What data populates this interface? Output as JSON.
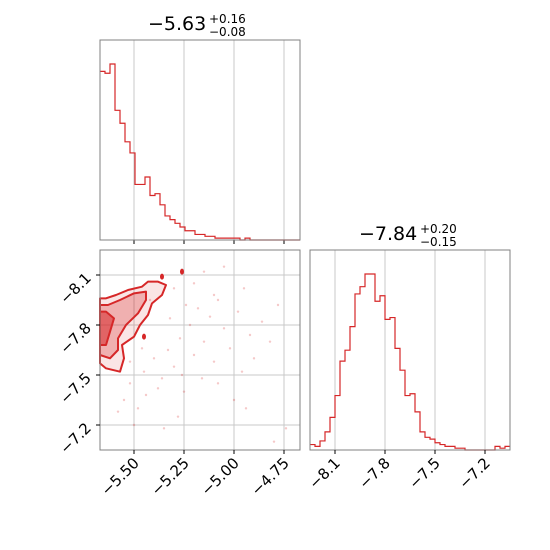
{
  "colors": {
    "series": "#d62728",
    "grid": "#c8c8c8",
    "frame": "#808080"
  },
  "chart_data": [
    {
      "type": "histogram",
      "panel": "marginal-x",
      "title": {
        "value": "−5.63",
        "plus": "+0.16",
        "minus": "−0.08"
      },
      "xlim": [
        -5.67,
        -4.67
      ],
      "grid": true,
      "bins": {
        "start": -5.67,
        "width": 0.025,
        "counts": [
          0.91,
          0.9,
          0.95,
          0.7,
          0.63,
          0.53,
          0.47,
          0.3,
          0.3,
          0.34,
          0.24,
          0.25,
          0.19,
          0.13,
          0.11,
          0.09,
          0.07,
          0.05,
          0.05,
          0.03,
          0.03,
          0.02,
          0.02,
          0.01,
          0.01,
          0.01,
          0.01,
          0.01,
          0.0,
          0.01,
          0.0,
          0.0,
          0.0,
          0.0,
          0.0,
          0.0,
          0.0,
          0.0,
          0.0,
          0.0
        ]
      }
    },
    {
      "type": "histogram",
      "panel": "marginal-y",
      "title": {
        "value": "−7.84",
        "plus": "+0.20",
        "minus": "−0.15"
      },
      "xlim": [
        -8.25,
        -7.05
      ],
      "xticks": [
        "−8.1",
        "−7.8",
        "−7.5",
        "−7.2"
      ],
      "xtick_values": [
        -8.1,
        -7.8,
        -7.5,
        -7.2
      ],
      "grid": true,
      "bins": {
        "start": -8.25,
        "width": 0.03,
        "counts": [
          0.03,
          0.02,
          0.05,
          0.1,
          0.18,
          0.3,
          0.49,
          0.55,
          0.68,
          0.86,
          0.9,
          0.97,
          0.97,
          0.82,
          0.85,
          0.72,
          0.73,
          0.56,
          0.44,
          0.3,
          0.31,
          0.21,
          0.1,
          0.07,
          0.06,
          0.04,
          0.03,
          0.02,
          0.02,
          0.01,
          0.01,
          0.0,
          0.0,
          0.0,
          0.0,
          0.0,
          0.0,
          0.02,
          0.01,
          0.02
        ]
      }
    },
    {
      "type": "scatter",
      "panel": "joint",
      "xlim": [
        -5.67,
        -4.67
      ],
      "ylim": [
        -8.25,
        -7.05
      ],
      "xticks": [
        "−5.50",
        "−5.25",
        "−5.00",
        "−4.75"
      ],
      "xtick_values": [
        -5.5,
        -5.25,
        -5.0,
        -4.75
      ],
      "yticks": [
        "−7.2",
        "−7.5",
        "−7.8",
        "−8.1"
      ],
      "ytick_values": [
        -7.2,
        -7.5,
        -7.8,
        -8.1
      ],
      "grid": true,
      "contour_levels": [
        {
          "level": "outer",
          "points": [
            [
              -5.67,
              -7.57
            ],
            [
              -5.64,
              -7.54
            ],
            [
              -5.57,
              -7.52
            ],
            [
              -5.55,
              -7.6
            ],
            [
              -5.56,
              -7.68
            ],
            [
              -5.5,
              -7.73
            ],
            [
              -5.47,
              -7.8
            ],
            [
              -5.43,
              -7.86
            ],
            [
              -5.41,
              -7.93
            ],
            [
              -5.36,
              -7.98
            ],
            [
              -5.34,
              -8.04
            ],
            [
              -5.38,
              -8.06
            ],
            [
              -5.43,
              -8.06
            ],
            [
              -5.46,
              -8.03
            ],
            [
              -5.53,
              -8.01
            ],
            [
              -5.59,
              -7.98
            ],
            [
              -5.64,
              -7.96
            ],
            [
              -5.67,
              -7.96
            ]
          ]
        },
        {
          "level": "middle",
          "points": [
            [
              -5.67,
              -7.62
            ],
            [
              -5.62,
              -7.6
            ],
            [
              -5.58,
              -7.65
            ],
            [
              -5.58,
              -7.72
            ],
            [
              -5.54,
              -7.8
            ],
            [
              -5.48,
              -7.87
            ],
            [
              -5.44,
              -7.95
            ],
            [
              -5.44,
              -8.0
            ],
            [
              -5.5,
              -7.99
            ],
            [
              -5.57,
              -7.95
            ],
            [
              -5.63,
              -7.92
            ],
            [
              -5.67,
              -7.92
            ]
          ]
        },
        {
          "level": "inner",
          "points": [
            [
              -5.67,
              -7.68
            ],
            [
              -5.64,
              -7.68
            ],
            [
              -5.62,
              -7.76
            ],
            [
              -5.6,
              -7.84
            ],
            [
              -5.64,
              -7.88
            ],
            [
              -5.67,
              -7.88
            ]
          ]
        }
      ],
      "scatter": [
        [
          -5.55,
          -7.35
        ],
        [
          -5.52,
          -7.45
        ],
        [
          -5.48,
          -7.3
        ],
        [
          -5.45,
          -7.52
        ],
        [
          -5.4,
          -7.6
        ],
        [
          -5.38,
          -7.42
        ],
        [
          -5.33,
          -7.65
        ],
        [
          -5.3,
          -7.55
        ],
        [
          -5.27,
          -7.72
        ],
        [
          -5.25,
          -7.4
        ],
        [
          -5.22,
          -7.8
        ],
        [
          -5.2,
          -7.62
        ],
        [
          -5.18,
          -7.9
        ],
        [
          -5.15,
          -7.7
        ],
        [
          -5.12,
          -7.85
        ],
        [
          -5.1,
          -7.58
        ],
        [
          -5.08,
          -7.95
        ],
        [
          -5.05,
          -7.78
        ],
        [
          -5.02,
          -7.66
        ],
        [
          -4.98,
          -7.88
        ],
        [
          -4.96,
          -7.52
        ],
        [
          -4.92,
          -7.74
        ],
        [
          -4.9,
          -7.6
        ],
        [
          -4.86,
          -7.82
        ],
        [
          -4.82,
          -7.7
        ],
        [
          -4.78,
          -7.92
        ],
        [
          -4.74,
          -7.18
        ],
        [
          -4.8,
          -7.1
        ],
        [
          -5.35,
          -7.18
        ],
        [
          -5.28,
          -7.25
        ],
        [
          -5.42,
          -7.95
        ],
        [
          -5.3,
          -8.02
        ],
        [
          -5.2,
          -8.05
        ],
        [
          -5.15,
          -8.12
        ],
        [
          -5.05,
          -8.15
        ],
        [
          -4.95,
          -8.02
        ],
        [
          -5.58,
          -7.28
        ],
        [
          -5.5,
          -7.2
        ],
        [
          -5.44,
          -7.38
        ],
        [
          -5.36,
          -7.48
        ],
        [
          -5.26,
          -7.5
        ],
        [
          -5.16,
          -7.48
        ],
        [
          -5.08,
          -7.45
        ],
        [
          -5.0,
          -7.35
        ],
        [
          -4.94,
          -7.3
        ],
        [
          -5.1,
          -7.98
        ],
        [
          -5.24,
          -7.92
        ],
        [
          -5.32,
          -7.84
        ],
        [
          -5.46,
          -7.66
        ],
        [
          -5.52,
          -7.58
        ]
      ],
      "highlight_points": [
        [
          -5.45,
          -7.73
        ],
        [
          -5.26,
          -8.12
        ],
        [
          -5.36,
          -8.09
        ]
      ]
    }
  ]
}
